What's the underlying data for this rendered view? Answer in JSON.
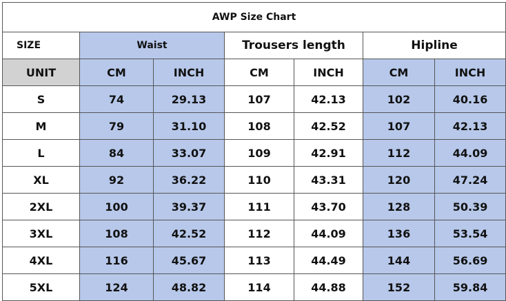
{
  "table": {
    "title": "AWP Size Chart",
    "header": [
      "SIZE",
      "Waist",
      "Trousers length",
      "Hipline"
    ],
    "units": [
      "UNIT",
      "CM",
      "INCH",
      "CM",
      "INCH",
      "CM",
      "INCH"
    ],
    "rows": [
      [
        "S",
        "74",
        "29.13",
        "107",
        "42.13",
        "102",
        "40.16"
      ],
      [
        "M",
        "79",
        "31.10",
        "108",
        "42.52",
        "107",
        "42.13"
      ],
      [
        "L",
        "84",
        "33.07",
        "109",
        "42.91",
        "112",
        "44.09"
      ],
      [
        "XL",
        "92",
        "36.22",
        "110",
        "43.31",
        "120",
        "47.24"
      ],
      [
        "2XL",
        "100",
        "39.37",
        "111",
        "43.70",
        "128",
        "50.39"
      ],
      [
        "3XL",
        "108",
        "42.52",
        "112",
        "44.09",
        "136",
        "53.54"
      ],
      [
        "4XL",
        "116",
        "45.67",
        "113",
        "44.49",
        "144",
        "56.69"
      ],
      [
        "5XL",
        "124",
        "48.82",
        "114",
        "44.88",
        "152",
        "59.84"
      ]
    ]
  }
}
